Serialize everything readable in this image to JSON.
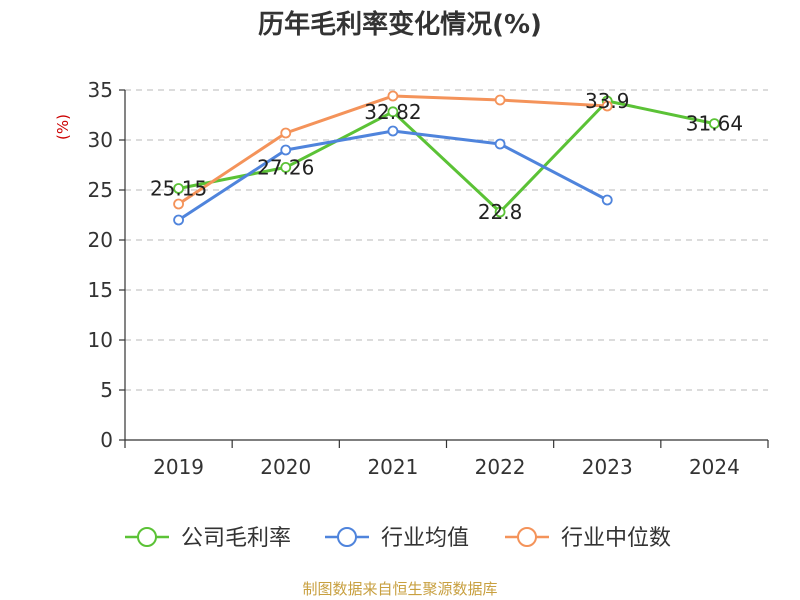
{
  "source": "制图数据来自恒生聚源数据库",
  "chart_data": {
    "type": "line",
    "title": "历年毛利率变化情况(%)",
    "ylabel": "(%)",
    "xlabel": "",
    "categories": [
      "2019",
      "2020",
      "2021",
      "2022",
      "2023",
      "2024"
    ],
    "ylim": [
      0,
      35
    ],
    "yticks": [
      0,
      5,
      10,
      15,
      20,
      25,
      30,
      35
    ],
    "grid": true,
    "legend_position": "bottom",
    "series": [
      {
        "name": "公司毛利率",
        "color": "#5bc236",
        "values": [
          25.15,
          27.26,
          32.82,
          22.8,
          33.9,
          31.64
        ],
        "labels": [
          "25.15",
          "27.26",
          "32.82",
          "22.8",
          "33.9",
          "31.64"
        ]
      },
      {
        "name": "行业均值",
        "color": "#4f84dc",
        "values": [
          22.0,
          29.0,
          30.9,
          29.6,
          24.0,
          null
        ]
      },
      {
        "name": "行业中位数",
        "color": "#f4935a",
        "values": [
          23.6,
          30.7,
          34.4,
          34.0,
          33.4,
          null
        ]
      }
    ]
  }
}
